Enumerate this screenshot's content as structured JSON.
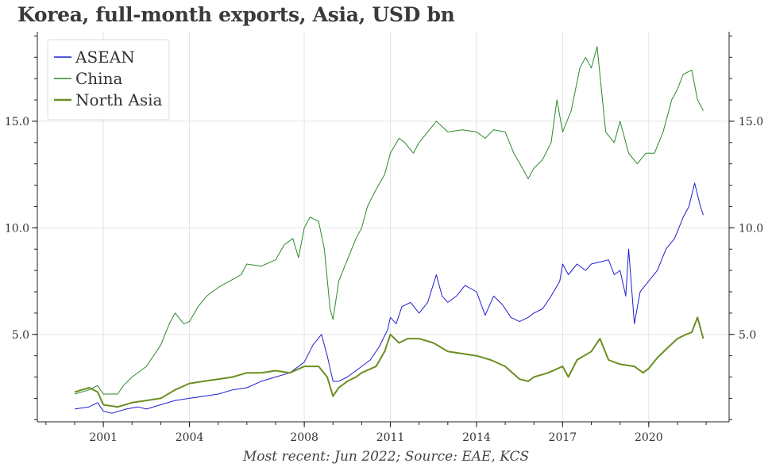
{
  "title": "Korea, full-month exports, Asia, USD bn",
  "caption": "Most recent: Jun 2022; Source: EAE, KCS",
  "chart_data": {
    "type": "line",
    "title": "Korea, full-month exports, Asia, USD bn",
    "xlabel": "",
    "ylabel": "",
    "xlim": [
      1998.7,
      2022.8
    ],
    "ylim": [
      0.9,
      19.2
    ],
    "x_ticks": [
      "2001",
      "2004",
      "2008",
      "2011",
      "2014",
      "2017",
      "2020"
    ],
    "y_ticks": [
      "5.0",
      "10.0",
      "15.0"
    ],
    "grid": true,
    "legend_position": "top-left",
    "series": [
      {
        "name": "ASEAN",
        "color": "#1f1fcf",
        "stroke": 1,
        "points": [
          [
            2000.0,
            1.5
          ],
          [
            2000.5,
            1.6
          ],
          [
            2000.8,
            1.8
          ],
          [
            2001.0,
            1.4
          ],
          [
            2001.3,
            1.3
          ],
          [
            2001.8,
            1.5
          ],
          [
            2002.2,
            1.6
          ],
          [
            2002.5,
            1.5
          ],
          [
            2003.0,
            1.7
          ],
          [
            2003.5,
            1.9
          ],
          [
            2004.0,
            2.0
          ],
          [
            2004.5,
            2.1
          ],
          [
            2005.0,
            2.2
          ],
          [
            2005.5,
            2.4
          ],
          [
            2006.0,
            2.5
          ],
          [
            2006.5,
            2.8
          ],
          [
            2007.0,
            3.0
          ],
          [
            2007.5,
            3.2
          ],
          [
            2008.0,
            3.7
          ],
          [
            2008.3,
            4.5
          ],
          [
            2008.6,
            5.0
          ],
          [
            2008.8,
            4.0
          ],
          [
            2009.0,
            2.8
          ],
          [
            2009.2,
            2.8
          ],
          [
            2009.5,
            3.0
          ],
          [
            2009.8,
            3.3
          ],
          [
            2010.0,
            3.5
          ],
          [
            2010.3,
            3.8
          ],
          [
            2010.6,
            4.4
          ],
          [
            2010.9,
            5.2
          ],
          [
            2011.0,
            5.8
          ],
          [
            2011.2,
            5.5
          ],
          [
            2011.4,
            6.3
          ],
          [
            2011.7,
            6.5
          ],
          [
            2012.0,
            6.0
          ],
          [
            2012.3,
            6.5
          ],
          [
            2012.6,
            7.8
          ],
          [
            2012.8,
            6.8
          ],
          [
            2013.0,
            6.5
          ],
          [
            2013.3,
            6.8
          ],
          [
            2013.6,
            7.3
          ],
          [
            2014.0,
            7.0
          ],
          [
            2014.3,
            5.9
          ],
          [
            2014.6,
            6.8
          ],
          [
            2014.9,
            6.4
          ],
          [
            2015.2,
            5.8
          ],
          [
            2015.5,
            5.6
          ],
          [
            2015.8,
            5.8
          ],
          [
            2016.0,
            6.0
          ],
          [
            2016.3,
            6.2
          ],
          [
            2016.6,
            6.8
          ],
          [
            2016.9,
            7.5
          ],
          [
            2017.0,
            8.3
          ],
          [
            2017.2,
            7.8
          ],
          [
            2017.5,
            8.3
          ],
          [
            2017.8,
            8.0
          ],
          [
            2018.0,
            8.3
          ],
          [
            2018.3,
            8.4
          ],
          [
            2018.6,
            8.5
          ],
          [
            2018.8,
            7.8
          ],
          [
            2019.0,
            8.0
          ],
          [
            2019.2,
            6.8
          ],
          [
            2019.3,
            9.0
          ],
          [
            2019.5,
            5.5
          ],
          [
            2019.7,
            7.0
          ],
          [
            2020.0,
            7.5
          ],
          [
            2020.3,
            8.0
          ],
          [
            2020.6,
            9.0
          ],
          [
            2020.9,
            9.5
          ],
          [
            2021.2,
            10.5
          ],
          [
            2021.4,
            11.0
          ],
          [
            2021.6,
            12.1
          ],
          [
            2021.8,
            11.0
          ],
          [
            2021.9,
            10.6
          ]
        ]
      },
      {
        "name": "China",
        "color": "#2a8a2a",
        "stroke": 1,
        "points": [
          [
            2000.0,
            2.2
          ],
          [
            2000.5,
            2.4
          ],
          [
            2000.8,
            2.6
          ],
          [
            2001.0,
            2.2
          ],
          [
            2001.5,
            2.2
          ],
          [
            2001.7,
            2.6
          ],
          [
            2002.0,
            3.0
          ],
          [
            2002.5,
            3.5
          ],
          [
            2003.0,
            4.5
          ],
          [
            2003.3,
            5.5
          ],
          [
            2003.5,
            6.0
          ],
          [
            2003.8,
            5.5
          ],
          [
            2004.0,
            5.6
          ],
          [
            2004.3,
            6.3
          ],
          [
            2004.6,
            6.8
          ],
          [
            2005.0,
            7.2
          ],
          [
            2005.4,
            7.5
          ],
          [
            2005.8,
            7.8
          ],
          [
            2006.0,
            8.3
          ],
          [
            2006.5,
            8.2
          ],
          [
            2007.0,
            8.5
          ],
          [
            2007.3,
            9.2
          ],
          [
            2007.6,
            9.5
          ],
          [
            2007.8,
            8.6
          ],
          [
            2008.0,
            10.0
          ],
          [
            2008.2,
            10.5
          ],
          [
            2008.5,
            10.3
          ],
          [
            2008.7,
            9.0
          ],
          [
            2008.9,
            6.2
          ],
          [
            2009.0,
            5.7
          ],
          [
            2009.2,
            7.5
          ],
          [
            2009.5,
            8.5
          ],
          [
            2009.8,
            9.5
          ],
          [
            2010.0,
            10.0
          ],
          [
            2010.2,
            11.0
          ],
          [
            2010.5,
            11.8
          ],
          [
            2010.8,
            12.5
          ],
          [
            2011.0,
            13.5
          ],
          [
            2011.3,
            14.2
          ],
          [
            2011.5,
            14.0
          ],
          [
            2011.8,
            13.5
          ],
          [
            2012.0,
            14.0
          ],
          [
            2012.3,
            14.5
          ],
          [
            2012.6,
            15.0
          ],
          [
            2013.0,
            14.5
          ],
          [
            2013.5,
            14.6
          ],
          [
            2014.0,
            14.5
          ],
          [
            2014.3,
            14.2
          ],
          [
            2014.6,
            14.6
          ],
          [
            2015.0,
            14.5
          ],
          [
            2015.3,
            13.5
          ],
          [
            2015.6,
            12.8
          ],
          [
            2015.8,
            12.3
          ],
          [
            2016.0,
            12.8
          ],
          [
            2016.3,
            13.2
          ],
          [
            2016.6,
            14.0
          ],
          [
            2016.8,
            16.0
          ],
          [
            2017.0,
            14.5
          ],
          [
            2017.3,
            15.5
          ],
          [
            2017.6,
            17.5
          ],
          [
            2017.8,
            18.0
          ],
          [
            2018.0,
            17.5
          ],
          [
            2018.2,
            18.5
          ],
          [
            2018.5,
            14.5
          ],
          [
            2018.8,
            14.0
          ],
          [
            2019.0,
            15.0
          ],
          [
            2019.3,
            13.5
          ],
          [
            2019.6,
            13.0
          ],
          [
            2019.9,
            13.5
          ],
          [
            2020.2,
            13.5
          ],
          [
            2020.5,
            14.5
          ],
          [
            2020.8,
            16.0
          ],
          [
            2021.0,
            16.5
          ],
          [
            2021.2,
            17.2
          ],
          [
            2021.5,
            17.4
          ],
          [
            2021.7,
            16.0
          ],
          [
            2021.9,
            15.5
          ]
        ]
      },
      {
        "name": "North Asia",
        "color": "#6b8e23",
        "stroke": 2,
        "points": [
          [
            2000.0,
            2.3
          ],
          [
            2000.5,
            2.5
          ],
          [
            2000.8,
            2.3
          ],
          [
            2001.0,
            1.7
          ],
          [
            2001.5,
            1.6
          ],
          [
            2002.0,
            1.8
          ],
          [
            2002.5,
            1.9
          ],
          [
            2003.0,
            2.0
          ],
          [
            2003.5,
            2.4
          ],
          [
            2004.0,
            2.7
          ],
          [
            2004.5,
            2.8
          ],
          [
            2005.0,
            2.9
          ],
          [
            2005.5,
            3.0
          ],
          [
            2006.0,
            3.2
          ],
          [
            2006.5,
            3.2
          ],
          [
            2007.0,
            3.3
          ],
          [
            2007.5,
            3.2
          ],
          [
            2008.0,
            3.5
          ],
          [
            2008.5,
            3.5
          ],
          [
            2008.8,
            3.0
          ],
          [
            2009.0,
            2.1
          ],
          [
            2009.2,
            2.5
          ],
          [
            2009.5,
            2.8
          ],
          [
            2009.8,
            3.0
          ],
          [
            2010.0,
            3.2
          ],
          [
            2010.5,
            3.5
          ],
          [
            2010.8,
            4.2
          ],
          [
            2011.0,
            5.0
          ],
          [
            2011.3,
            4.6
          ],
          [
            2011.6,
            4.8
          ],
          [
            2012.0,
            4.8
          ],
          [
            2012.5,
            4.6
          ],
          [
            2013.0,
            4.2
          ],
          [
            2013.5,
            4.1
          ],
          [
            2014.0,
            4.0
          ],
          [
            2014.5,
            3.8
          ],
          [
            2015.0,
            3.5
          ],
          [
            2015.5,
            2.9
          ],
          [
            2015.8,
            2.8
          ],
          [
            2016.0,
            3.0
          ],
          [
            2016.5,
            3.2
          ],
          [
            2017.0,
            3.5
          ],
          [
            2017.2,
            3.0
          ],
          [
            2017.5,
            3.8
          ],
          [
            2018.0,
            4.2
          ],
          [
            2018.3,
            4.8
          ],
          [
            2018.6,
            3.8
          ],
          [
            2019.0,
            3.6
          ],
          [
            2019.5,
            3.5
          ],
          [
            2019.8,
            3.2
          ],
          [
            2020.0,
            3.4
          ],
          [
            2020.3,
            3.9
          ],
          [
            2020.6,
            4.3
          ],
          [
            2021.0,
            4.8
          ],
          [
            2021.3,
            5.0
          ],
          [
            2021.5,
            5.1
          ],
          [
            2021.7,
            5.8
          ],
          [
            2021.9,
            4.8
          ]
        ]
      }
    ]
  }
}
